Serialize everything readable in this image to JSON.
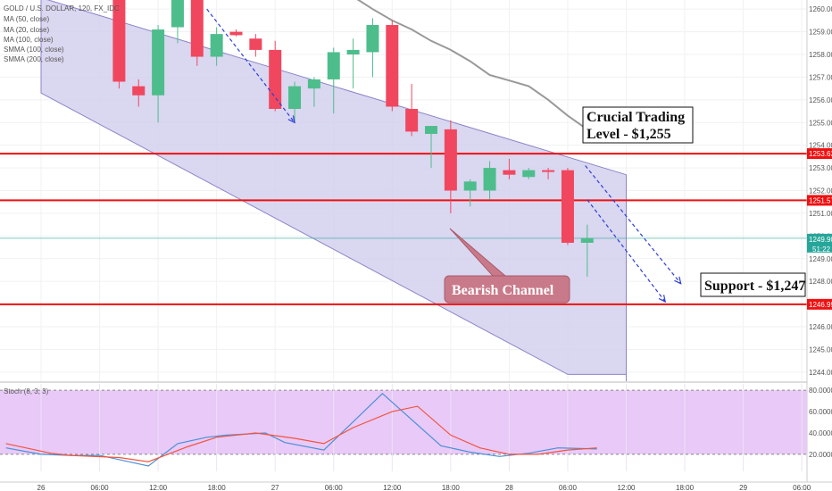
{
  "chart_data": {
    "type": "candlestick",
    "symbol_line": "GOLD / U.S. DOLLAR, 120, FX_IDC",
    "indicator_legend": [
      "MA (50, close)",
      "MA (20, close)",
      "MA (100, close)",
      "SMMA (100, close)",
      "SMMA (200, close)"
    ],
    "y_ticks": [
      "1244.00",
      "1245.00",
      "1246.00",
      "1247.00",
      "1248.00",
      "1249.00",
      "1250.00",
      "1251.00",
      "1252.00",
      "1253.00",
      "1254.00",
      "1255.00",
      "1256.00",
      "1257.00",
      "1258.00",
      "1259.00",
      "1260.00"
    ],
    "ylim": [
      1243.6,
      1260.4
    ],
    "x_ticks": [
      {
        "i": 1.0,
        "label": "26"
      },
      {
        "i": 4.0,
        "label": "06:00"
      },
      {
        "i": 7.0,
        "label": "12:00"
      },
      {
        "i": 10.0,
        "label": "18:00"
      },
      {
        "i": 13.0,
        "label": "27"
      },
      {
        "i": 16.0,
        "label": "06:00"
      },
      {
        "i": 19.0,
        "label": "12:00"
      },
      {
        "i": 22.0,
        "label": "18:00"
      },
      {
        "i": 25.0,
        "label": "28"
      },
      {
        "i": 28.0,
        "label": "06:00"
      },
      {
        "i": 31.0,
        "label": "12:00"
      },
      {
        "i": 34.0,
        "label": "18:00"
      },
      {
        "i": 37.0,
        "label": "29"
      },
      {
        "i": 40.0,
        "label": "06:00"
      }
    ],
    "candles": [
      {
        "i": 5.0,
        "o": 1260.6,
        "h": 1260.6,
        "l": 1256.5,
        "c": 1256.8
      },
      {
        "i": 6.0,
        "o": 1256.6,
        "h": 1256.9,
        "l": 1255.7,
        "c": 1256.2
      },
      {
        "i": 7.0,
        "o": 1256.2,
        "h": 1259.3,
        "l": 1255.0,
        "c": 1259.1
      },
      {
        "i": 8.0,
        "o": 1259.2,
        "h": 1260.4,
        "l": 1258.5,
        "c": 1260.4
      },
      {
        "i": 9.0,
        "o": 1260.6,
        "h": 1260.6,
        "l": 1257.5,
        "c": 1257.9
      },
      {
        "i": 10.0,
        "o": 1257.9,
        "h": 1259.2,
        "l": 1257.5,
        "c": 1258.9
      },
      {
        "i": 11.0,
        "o": 1259.0,
        "h": 1259.1,
        "l": 1258.8,
        "c": 1258.85
      },
      {
        "i": 12.0,
        "o": 1258.7,
        "h": 1258.9,
        "l": 1257.9,
        "c": 1258.2
      },
      {
        "i": 13.0,
        "o": 1258.2,
        "h": 1258.6,
        "l": 1255.5,
        "c": 1255.6
      },
      {
        "i": 14.0,
        "o": 1255.6,
        "h": 1256.8,
        "l": 1255.0,
        "c": 1256.6
      },
      {
        "i": 15.0,
        "o": 1256.5,
        "h": 1257.0,
        "l": 1255.7,
        "c": 1256.9
      },
      {
        "i": 16.0,
        "o": 1256.9,
        "h": 1258.3,
        "l": 1255.4,
        "c": 1258.1
      },
      {
        "i": 17.0,
        "o": 1258.0,
        "h": 1258.7,
        "l": 1256.5,
        "c": 1258.2
      },
      {
        "i": 18.0,
        "o": 1258.1,
        "h": 1259.6,
        "l": 1257.0,
        "c": 1259.3
      },
      {
        "i": 19.0,
        "o": 1259.3,
        "h": 1259.5,
        "l": 1255.5,
        "c": 1255.7
      },
      {
        "i": 20.0,
        "o": 1255.6,
        "h": 1256.7,
        "l": 1254.4,
        "c": 1254.6
      },
      {
        "i": 21.0,
        "o": 1254.5,
        "h": 1254.8,
        "l": 1253.0,
        "c": 1254.85
      },
      {
        "i": 22.0,
        "o": 1254.7,
        "h": 1255.1,
        "l": 1251.0,
        "c": 1252.0
      },
      {
        "i": 23.0,
        "o": 1252.0,
        "h": 1252.5,
        "l": 1251.3,
        "c": 1252.4
      },
      {
        "i": 24.0,
        "o": 1252.0,
        "h": 1253.3,
        "l": 1251.6,
        "c": 1253.0
      },
      {
        "i": 25.0,
        "o": 1252.9,
        "h": 1253.4,
        "l": 1252.5,
        "c": 1252.7
      },
      {
        "i": 26.0,
        "o": 1252.6,
        "h": 1253.0,
        "l": 1252.5,
        "c": 1252.9
      },
      {
        "i": 27.0,
        "o": 1252.9,
        "h": 1253.0,
        "l": 1252.5,
        "c": 1252.85
      },
      {
        "i": 28.0,
        "o": 1252.9,
        "h": 1253.0,
        "l": 1249.6,
        "c": 1249.7
      },
      {
        "i": 29.0,
        "o": 1249.7,
        "h": 1250.5,
        "l": 1248.2,
        "c": 1249.9
      }
    ],
    "smma_line": [
      {
        "i": 17.0,
        "y": 1260.55
      },
      {
        "i": 18.0,
        "y": 1260.0
      },
      {
        "i": 19.0,
        "y": 1259.5
      },
      {
        "i": 20.0,
        "y": 1259.1
      },
      {
        "i": 21.0,
        "y": 1258.6
      },
      {
        "i": 22.0,
        "y": 1258.2
      },
      {
        "i": 23.0,
        "y": 1257.7
      },
      {
        "i": 24.0,
        "y": 1257.1
      },
      {
        "i": 25.0,
        "y": 1256.85
      },
      {
        "i": 26.0,
        "y": 1256.6
      },
      {
        "i": 27.0,
        "y": 1256.0
      },
      {
        "i": 28.0,
        "y": 1255.3
      },
      {
        "i": 29.0,
        "y": 1254.7
      }
    ],
    "channel": {
      "upper": [
        {
          "i": 1.0,
          "y": 1260.5
        },
        {
          "i": 31.0,
          "y": 1252.7
        }
      ],
      "lower": [
        {
          "i": 1.0,
          "y": 1256.3
        },
        {
          "i": 28.0,
          "y": 1243.9
        },
        {
          "i": 31.0,
          "y": 1243.9
        }
      ],
      "right": [
        {
          "i": 31.0,
          "y": 1252.7
        },
        {
          "i": 31.0,
          "y": 1243.6
        }
      ]
    },
    "levels": [
      {
        "value": 1253.63,
        "label": "1253.63",
        "color": "#ee1111"
      },
      {
        "value": 1251.57,
        "label": "1251.57",
        "color": "#ee1111"
      },
      {
        "value": 1246.99,
        "label": "1246.99",
        "color": "#ee1111"
      }
    ],
    "current_price": {
      "value": 1249.9,
      "label": "1249.90",
      "countdown": "51:22",
      "color": "#26a69a"
    },
    "arrows": [
      {
        "from": {
          "i": 9.5,
          "y": 1260.0
        },
        "to": {
          "i": 14.0,
          "y": 1255.0
        }
      },
      {
        "from": {
          "i": 29.0,
          "y": 1251.6
        },
        "to": {
          "i": 33.0,
          "y": 1247.1
        }
      },
      {
        "from": {
          "i": 28.9,
          "y": 1253.1
        },
        "to": {
          "i": 33.8,
          "y": 1247.9
        }
      }
    ],
    "annotations": [
      {
        "name": "crucial-level-label",
        "text_lines": [
          "Crucial Trading",
          "Level - $1,255"
        ],
        "box": true
      },
      {
        "name": "support-label",
        "text_lines": [
          "Support - $1,247"
        ],
        "box": true
      },
      {
        "name": "bearish-channel-label",
        "text_lines": [
          "Bearish Channel"
        ],
        "box": true,
        "callout_to": {
          "i": 22.0,
          "y": 1249.9
        }
      }
    ],
    "stoch": {
      "label": "Stoch (8, 3, 3)",
      "y_ticks": [
        "20.0000",
        "40.0000",
        "60.0000",
        "80.0000"
      ],
      "ylim": [
        4,
        86
      ],
      "k": [
        {
          "i": -0.8,
          "v": 26
        },
        {
          "i": 1.0,
          "v": 20
        },
        {
          "i": 2.5,
          "v": 19
        },
        {
          "i": 4.0,
          "v": 19
        },
        {
          "i": 5.5,
          "v": 13
        },
        {
          "i": 6.5,
          "v": 9
        },
        {
          "i": 8.0,
          "v": 30
        },
        {
          "i": 9.5,
          "v": 36
        },
        {
          "i": 10.5,
          "v": 38
        },
        {
          "i": 12.5,
          "v": 40
        },
        {
          "i": 13.5,
          "v": 31
        },
        {
          "i": 15.5,
          "v": 24
        },
        {
          "i": 18.5,
          "v": 77
        },
        {
          "i": 21.5,
          "v": 28
        },
        {
          "i": 23.0,
          "v": 22
        },
        {
          "i": 24.5,
          "v": 18
        },
        {
          "i": 26.0,
          "v": 21
        },
        {
          "i": 27.5,
          "v": 26
        },
        {
          "i": 29.5,
          "v": 25
        }
      ],
      "d": [
        {
          "i": -0.8,
          "v": 30
        },
        {
          "i": 1.5,
          "v": 21
        },
        {
          "i": 2.5,
          "v": 19
        },
        {
          "i": 5.0,
          "v": 17
        },
        {
          "i": 6.5,
          "v": 13
        },
        {
          "i": 8.5,
          "v": 27
        },
        {
          "i": 10.0,
          "v": 36
        },
        {
          "i": 12.0,
          "v": 40
        },
        {
          "i": 14.0,
          "v": 35
        },
        {
          "i": 15.5,
          "v": 30
        },
        {
          "i": 17.0,
          "v": 45
        },
        {
          "i": 19.0,
          "v": 60
        },
        {
          "i": 20.3,
          "v": 65
        },
        {
          "i": 22.0,
          "v": 38
        },
        {
          "i": 23.5,
          "v": 26
        },
        {
          "i": 25.0,
          "v": 20
        },
        {
          "i": 26.5,
          "v": 20
        },
        {
          "i": 28.0,
          "v": 24
        },
        {
          "i": 29.5,
          "v": 26
        }
      ]
    },
    "colors": {
      "up": "#4ebd8c",
      "down": "#f0475f",
      "channel_fill": "#d4d0ed",
      "channel_stroke": "#8a85c8",
      "level": "#ee1111",
      "smma": "#999999",
      "arrow": "#2c3fd6",
      "stoch_fill": "#e8c9f7",
      "stoch_k": "#4a90d6",
      "stoch_d": "#f2543e",
      "callout": "#c97a8a"
    }
  }
}
